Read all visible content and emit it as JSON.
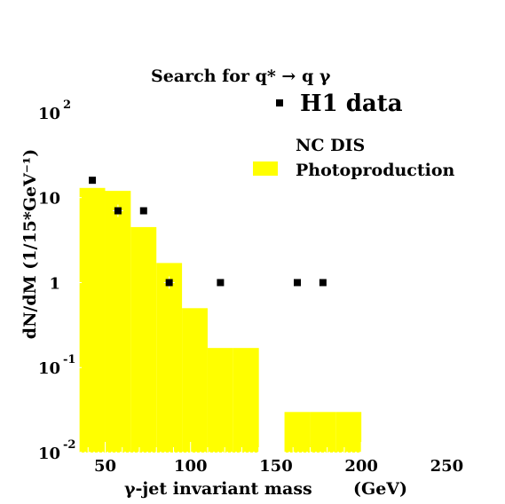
{
  "chart_data": {
    "type": "bar",
    "title": "Search for q* → q γ",
    "xlabel": "γ-jet invariant mass",
    "xunit": "(GeV)",
    "ylabel": "dN/dM (1/15*GeV⁻¹)",
    "xlim": [
      30,
      255
    ],
    "ylim": [
      0.01,
      500
    ],
    "yscale": "log",
    "grid": false,
    "legend_position": "top-right",
    "x_ticks": [
      "50",
      "100",
      "150",
      "200",
      "250"
    ],
    "y_ticks": [
      {
        "base": "10",
        "exp": "-2"
      },
      {
        "base": "10",
        "exp": "-1"
      },
      {
        "base": "1",
        "exp": ""
      },
      {
        "base": "10",
        "exp": ""
      },
      {
        "base": "10",
        "exp": "2"
      }
    ],
    "legend": [
      {
        "label": "H1 data",
        "marker": "square",
        "color": "#000000"
      },
      {
        "label": "NC DIS",
        "marker": "none",
        "color": "#ffffff"
      },
      {
        "label": "Photoproduction",
        "marker": "box",
        "color": "#ffff00"
      }
    ],
    "series": [
      {
        "name": "Photoproduction",
        "kind": "histogram",
        "color": "#ffff00",
        "bins": [
          {
            "x0": 35,
            "x1": 50,
            "value": 13
          },
          {
            "x0": 50,
            "x1": 65,
            "value": 12
          },
          {
            "x0": 65,
            "x1": 80,
            "value": 4.5
          },
          {
            "x0": 80,
            "x1": 95,
            "value": 1.7
          },
          {
            "x0": 95,
            "x1": 110,
            "value": 0.5
          },
          {
            "x0": 110,
            "x1": 125,
            "value": 0.17
          },
          {
            "x0": 125,
            "x1": 140,
            "value": 0.17
          },
          {
            "x0": 155,
            "x1": 170,
            "value": 0.03
          },
          {
            "x0": 170,
            "x1": 185,
            "value": 0.03
          },
          {
            "x0": 185,
            "x1": 200,
            "value": 0.03
          }
        ]
      },
      {
        "name": "H1 data",
        "kind": "points",
        "color": "#000000",
        "points": [
          {
            "x": 42.5,
            "y": 16
          },
          {
            "x": 57.5,
            "y": 7
          },
          {
            "x": 72.5,
            "y": 7
          },
          {
            "x": 87.5,
            "y": 1
          },
          {
            "x": 117.5,
            "y": 1
          },
          {
            "x": 162.5,
            "y": 1
          },
          {
            "x": 177.5,
            "y": 1
          }
        ]
      }
    ]
  }
}
